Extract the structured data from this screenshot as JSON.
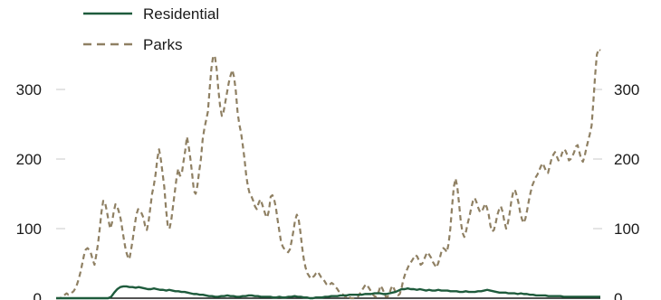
{
  "chart_data": {
    "type": "line",
    "title": "",
    "xlabel": "",
    "ylabel": "",
    "ylim": [
      0,
      360
    ],
    "yticks": [
      0,
      100,
      200,
      300
    ],
    "grid": false,
    "dual_y_axis_same_scale": true,
    "legend": {
      "placement": "top-left",
      "entries": [
        {
          "name": "Residential",
          "color": "#1e5b3c",
          "style": "solid"
        },
        {
          "name": "Parks",
          "color": "#8f8063",
          "style": "dashed"
        }
      ]
    },
    "series": [
      {
        "name": "Residential",
        "color": "#1e5b3c",
        "style": "solid",
        "y": [
          0,
          0,
          0,
          0,
          0,
          0,
          0,
          0,
          0,
          0,
          0,
          0,
          0,
          0,
          0,
          0,
          0,
          0,
          2,
          8,
          13,
          16,
          17,
          17,
          16,
          16,
          15,
          16,
          15,
          14,
          13,
          13,
          14,
          13,
          12,
          12,
          11,
          12,
          11,
          10,
          10,
          9,
          9,
          8,
          7,
          6,
          6,
          5,
          5,
          4,
          3,
          3,
          2,
          2,
          3,
          3,
          4,
          3,
          3,
          2,
          2,
          3,
          3,
          4,
          4,
          3,
          3,
          2,
          2,
          2,
          2,
          1,
          1,
          2,
          1,
          1,
          2,
          2,
          3,
          2,
          2,
          1,
          1,
          0,
          0,
          1,
          1,
          1,
          2,
          2,
          3,
          3,
          3,
          4,
          4,
          4,
          5,
          5,
          5,
          5,
          5,
          6,
          6,
          6,
          7,
          7,
          7,
          6,
          6,
          7,
          8,
          9,
          11,
          13,
          13,
          14,
          13,
          13,
          12,
          13,
          12,
          11,
          12,
          11,
          11,
          12,
          11,
          11,
          11,
          10,
          10,
          10,
          9,
          9,
          10,
          9,
          9,
          9,
          10,
          10,
          11,
          12,
          11,
          10,
          9,
          8,
          8,
          8,
          7,
          7,
          7,
          6,
          7,
          6,
          6,
          5,
          5,
          4,
          4,
          4,
          4,
          3,
          3,
          3,
          3,
          3,
          2,
          2,
          2,
          2,
          2,
          2,
          2,
          2,
          2,
          2,
          2,
          2,
          2
        ]
      },
      {
        "name": "Parks",
        "color": "#8f8063",
        "style": "dashed",
        "y": [
          0,
          0,
          0,
          1,
          3,
          5,
          7,
          5,
          6,
          8,
          10,
          14,
          20,
          28,
          38,
          50,
          62,
          70,
          72,
          69,
          64,
          55,
          48,
          62,
          78,
          100,
          124,
          140,
          138,
          126,
          112,
          100,
          108,
          124,
          135,
          132,
          124,
          114,
          98,
          82,
          68,
          60,
          56,
          70,
          86,
          104,
          120,
          128,
          126,
          122,
          116,
          104,
          98,
          110,
          130,
          150,
          162,
          178,
          200,
          214,
          200,
          180,
          160,
          128,
          104,
          100,
          112,
          132,
          152,
          172,
          186,
          176,
          178,
          196,
          212,
          232,
          218,
          200,
          178,
          154,
          150,
          162,
          182,
          200,
          228,
          244,
          256,
          268,
          300,
          330,
          348,
          348,
          330,
          300,
          276,
          262,
          268,
          282,
          296,
          310,
          320,
          328,
          318,
          298,
          268,
          250,
          238,
          220,
          200,
          176,
          160,
          150,
          146,
          140,
          132,
          128,
          136,
          142,
          136,
          128,
          120,
          116,
          126,
          146,
          148,
          142,
          130,
          112,
          96,
          80,
          74,
          70,
          68,
          66,
          70,
          82,
          96,
          112,
          120,
          114,
          96,
          74,
          56,
          44,
          36,
          32,
          28,
          30,
          32,
          36,
          38,
          34,
          30,
          28,
          24,
          20,
          18,
          20,
          22,
          20,
          16,
          14,
          10,
          8,
          6,
          4,
          2,
          0,
          2,
          0,
          0,
          0,
          0,
          2,
          6,
          10,
          14,
          18,
          20,
          16,
          12,
          8,
          4,
          2,
          4,
          10,
          18,
          14,
          8,
          2,
          2,
          6,
          14,
          18,
          12,
          6,
          4,
          6,
          14,
          26,
          34,
          40,
          46,
          50,
          54,
          58,
          62,
          60,
          54,
          48,
          50,
          56,
          62,
          66,
          62,
          58,
          52,
          48,
          44,
          50,
          58,
          68,
          72,
          70,
          66,
          78,
          100,
          132,
          160,
          172,
          160,
          136,
          110,
          94,
          88,
          96,
          108,
          118,
          130,
          140,
          144,
          138,
          130,
          124,
          124,
          130,
          136,
          130,
          120,
          104,
          96,
          98,
          108,
          120,
          128,
          132,
          124,
          110,
          100,
          108,
          122,
          140,
          152,
          156,
          148,
          138,
          124,
          114,
          108,
          114,
          126,
          140,
          152,
          162,
          168,
          174,
          178,
          184,
          190,
          194,
          188,
          182,
          180,
          190,
          200,
          206,
          210,
          204,
          198,
          200,
          208,
          214,
          212,
          206,
          198,
          200,
          204,
          210,
          218,
          220,
          210,
          200,
          196,
          204,
          216,
          226,
          236,
          248,
          282,
          320,
          350,
          358,
          356
        ]
      }
    ]
  }
}
